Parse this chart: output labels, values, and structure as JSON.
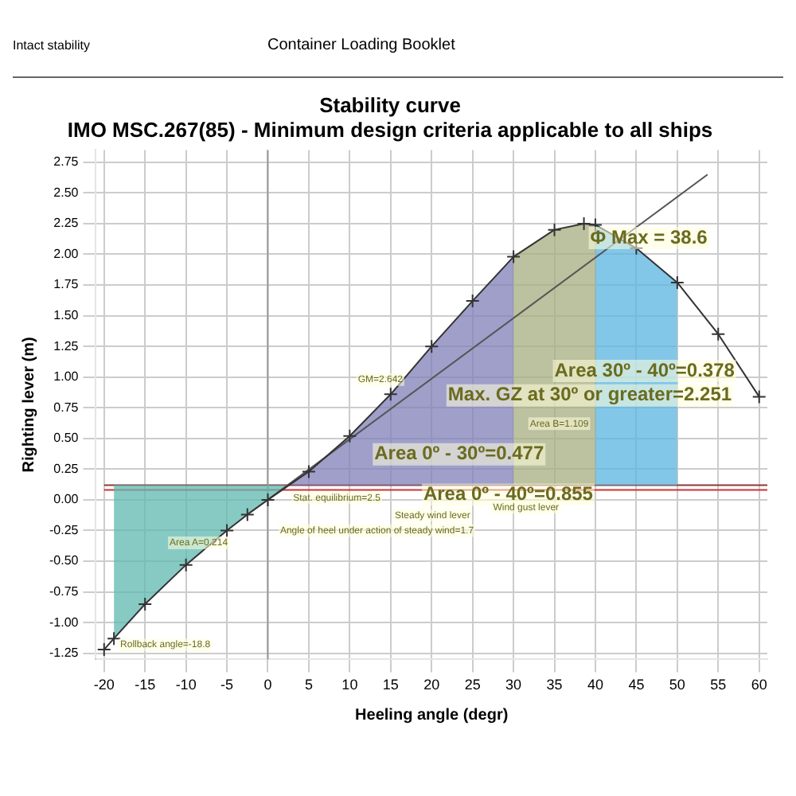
{
  "chart_data": {
    "type": "line",
    "title": "Stability curve",
    "subtitle": "IMO MSC.267(85) - Minimum design criteria applicable to all ships",
    "xlabel": "Heeling angle (degr)",
    "ylabel": "Righting lever (m)",
    "series": [
      {
        "type": "line",
        "color": "#333333",
        "marker": "cross",
        "x": [
          -20,
          -18.8,
          -15,
          -10,
          -5,
          -2.5,
          0,
          5,
          10,
          15,
          20,
          25,
          30,
          35,
          38.6,
          40,
          45,
          50,
          55,
          60
        ],
        "values": [
          -1.22,
          -1.13,
          -0.85,
          -0.53,
          -0.25,
          -0.12,
          0,
          0.23,
          0.52,
          0.86,
          1.25,
          1.62,
          1.98,
          2.2,
          2.25,
          2.24,
          2.05,
          1.77,
          1.35,
          0.84
        ]
      },
      {
        "type": "line",
        "color": "#555555",
        "marker": "none",
        "x": [
          0,
          53.7
        ],
        "values": [
          0,
          2.65
        ]
      },
      {
        "type": "area",
        "color": "#5fb8b0",
        "x": [
          -18.8,
          -18.8,
          -15,
          -10,
          -5,
          -2.5,
          0,
          2.5
        ],
        "values": [
          0.12,
          -1.13,
          -0.85,
          -0.53,
          -0.25,
          -0.12,
          0,
          0.12
        ]
      },
      {
        "type": "area",
        "color": "#8080b8",
        "x": [
          2.5,
          5,
          10,
          15,
          20,
          25,
          30
        ],
        "values": [
          0.12,
          0.23,
          0.52,
          0.86,
          1.25,
          1.62,
          1.98
        ]
      },
      {
        "type": "area",
        "color": "#a6ad80",
        "x": [
          30,
          35,
          38.6,
          40
        ],
        "values": [
          1.98,
          2.2,
          2.25,
          2.24
        ]
      },
      {
        "type": "area",
        "color": "#5ab4e0",
        "x": [
          40,
          45,
          50
        ],
        "values": [
          2.24,
          2.05,
          1.77
        ]
      }
    ],
    "xlim": [
      -21,
      61
    ],
    "xticks": [
      -20,
      -15,
      -10,
      -5,
      0,
      5,
      10,
      15,
      20,
      25,
      30,
      35,
      40,
      45,
      50,
      55,
      60
    ],
    "ylim": [
      -1.3,
      2.85
    ],
    "yticks": [
      {
        "value": -1.25,
        "label": "-1.25"
      },
      {
        "value": -1,
        "label": "-1.00"
      },
      {
        "value": -0.75,
        "label": "-0.75"
      },
      {
        "value": -0.5,
        "label": "-0.50"
      },
      {
        "value": -0.25,
        "label": "-0.25"
      },
      {
        "value": 0,
        "label": "0.00"
      },
      {
        "value": 0.25,
        "label": "0.25"
      },
      {
        "value": 0.5,
        "label": "0.50"
      },
      {
        "value": 0.75,
        "label": "0.75"
      },
      {
        "value": 1,
        "label": "1.00"
      },
      {
        "value": 1.25,
        "label": "1.25"
      },
      {
        "value": 1.5,
        "label": "1.50"
      },
      {
        "value": 1.75,
        "label": "1.75"
      },
      {
        "value": 2,
        "label": "2.00"
      },
      {
        "value": 2.25,
        "label": "2.25"
      },
      {
        "value": 2.5,
        "label": "2.50"
      },
      {
        "value": 2.75,
        "label": "2.75"
      }
    ],
    "grid": true,
    "ref_lines": [
      {
        "axis": "y",
        "value": 0.08,
        "color": "#cc3333"
      },
      {
        "axis": "y",
        "value": 0.12,
        "color": "#8b3a3a"
      },
      {
        "axis": "x",
        "value": 0,
        "color": "#999999"
      }
    ],
    "annotations": [
      "Intact stability",
      "Container Loading Booklet",
      {
        "text": "Φ Max = 38.6",
        "x": 38.6,
        "y": 2.25
      },
      "Area 30º - 40º=0.378",
      "Max. GZ at 30º or greater=2.251",
      "Area B=1.109",
      "Area 0º - 30º=0.477",
      {
        "text": "Area 0º - 40º=0.855",
        "x": 19,
        "y": 0.12
      },
      "GM=2.642",
      {
        "text": "Stat. equilibrium=2.5",
        "x": 2.5,
        "y": 0.12
      },
      {
        "text": "Steady wind lever",
        "x": 15.5,
        "y": 0.08
      },
      {
        "text": "Wind gust lever",
        "x": 27.5,
        "y": 0.12
      },
      "Angle of heel under action of steady wind=1.7",
      "Area A=0.214",
      {
        "text": "Rollback angle=-18.8",
        "x": -18.8,
        "y": -1.13
      }
    ]
  }
}
